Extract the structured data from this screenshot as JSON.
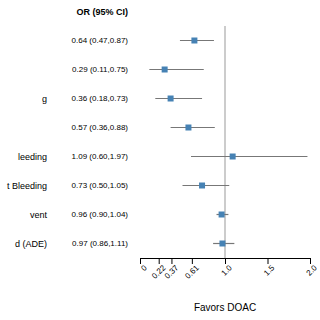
{
  "chart_data": {
    "type": "forest",
    "categories": [
      null,
      null,
      "g",
      null,
      "leeding",
      "t Bleeding",
      "vent",
      "d (ADE)"
    ],
    "values": [
      0.64,
      0.29,
      0.36,
      0.57,
      1.09,
      0.73,
      0.96,
      0.97
    ],
    "ci_lo": [
      0.47,
      0.11,
      0.18,
      0.36,
      0.6,
      0.5,
      0.9,
      0.86
    ],
    "ci_hi": [
      0.87,
      0.75,
      0.73,
      0.88,
      1.97,
      1.05,
      1.04,
      1.11
    ],
    "value_labels": [
      "0.64 (0.47,0.87)",
      "0.29 (0.11,0.75)",
      "0.36 (0.18,0.73)",
      "0.57 (0.36,0.88)",
      "1.09 (0.60,1.97)",
      "0.73 (0.50,1.05)",
      "0.96 (0.90,1.04)",
      "0.97 (0.86,1.11)"
    ],
    "data_labels": true,
    "annotations": [
      "OR (95% CI)"
    ],
    "x_label": "Favors DOAC",
    "xlim": [
      0,
      2.0
    ],
    "xticks": [
      0,
      0.22,
      0.37,
      0.61,
      {
        "value": 1.0,
        "label": "1.0"
      },
      1.5,
      {
        "value": 2.0,
        "label": "2.0"
      }
    ],
    "reference_line": 1.0,
    "marker": "square"
  }
}
